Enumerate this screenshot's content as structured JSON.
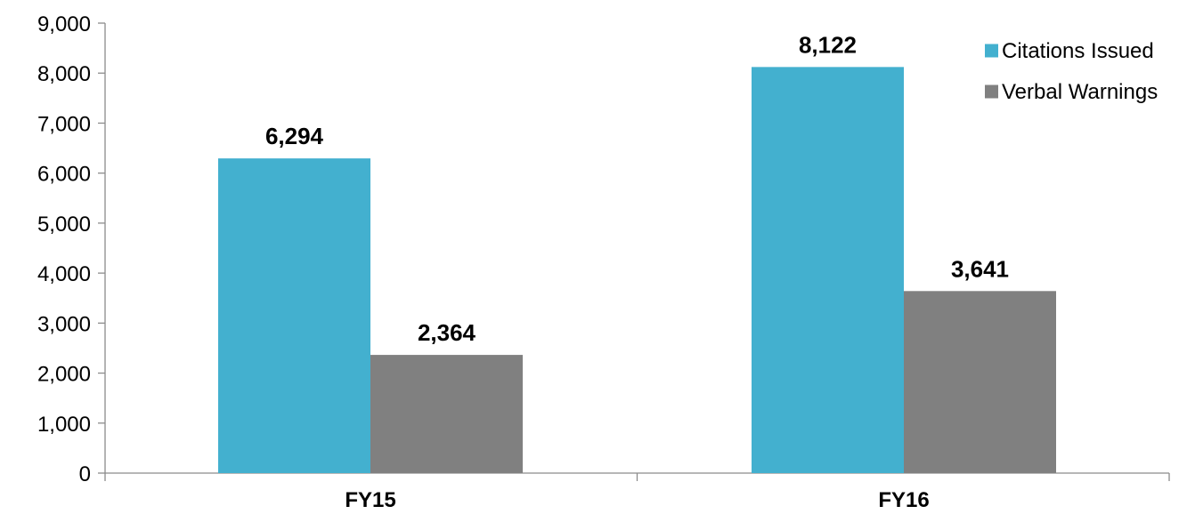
{
  "chart_data": {
    "type": "bar",
    "categories": [
      "FY15",
      "FY16"
    ],
    "series": [
      {
        "name": "Citations Issued",
        "values": [
          6294,
          8122
        ],
        "labels": [
          "6,294",
          "8,122"
        ],
        "color": "#43b0cf"
      },
      {
        "name": "Verbal Warnings",
        "values": [
          2364,
          3641
        ],
        "labels": [
          "2,364",
          "3,641"
        ],
        "color": "#808080"
      }
    ],
    "yticks": [
      0,
      1000,
      2000,
      3000,
      4000,
      5000,
      6000,
      7000,
      8000,
      9000
    ],
    "ytick_labels": [
      "0",
      "1,000",
      "2,000",
      "3,000",
      "4,000",
      "5,000",
      "6,000",
      "7,000",
      "8,000",
      "9,000"
    ],
    "ylim": [
      0,
      9000
    ],
    "grid": false,
    "legend_position": "top-right"
  }
}
